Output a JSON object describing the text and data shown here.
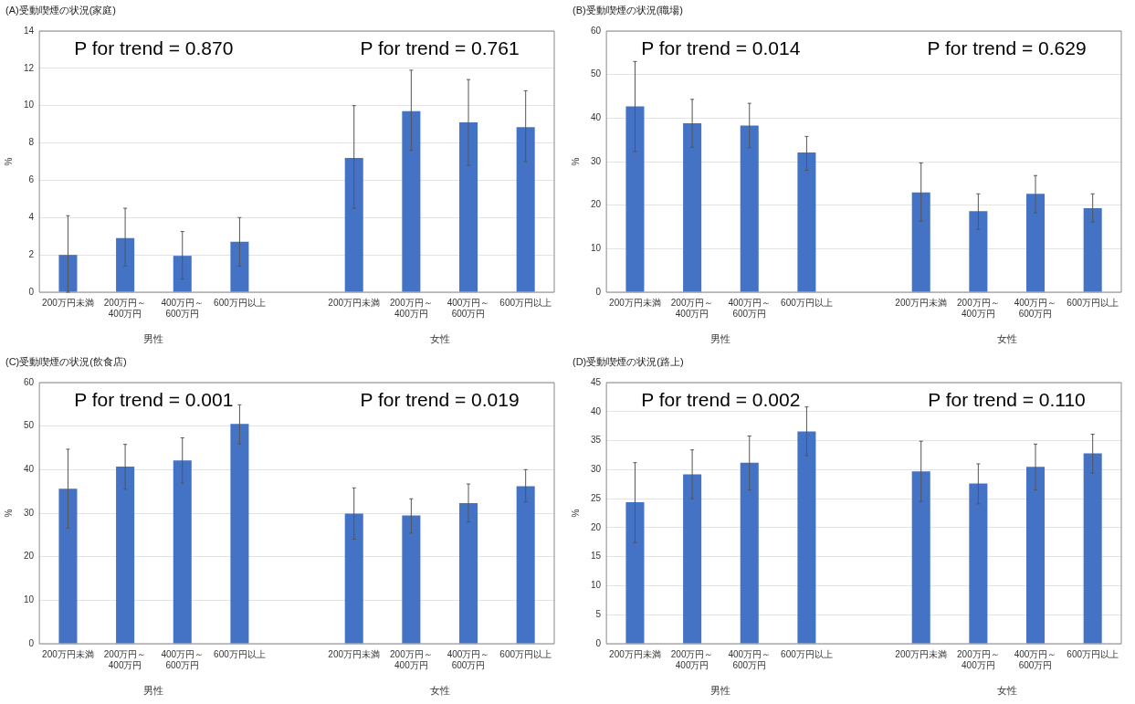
{
  "chart_data": [
    {
      "type": "bar",
      "title": "(A)受動喫煙の状況(家庭)",
      "ylabel": "%",
      "categories": [
        "200万円未満",
        "200万円～400万円",
        "400万円～600万円",
        "600万円以上",
        null,
        "200万円未満",
        "200万円～400万円",
        "400万円～600万円",
        "600万円以上"
      ],
      "values": [
        2.0,
        2.9,
        1.95,
        2.7,
        null,
        7.2,
        9.7,
        9.1,
        8.85
      ],
      "errors": [
        [
          0,
          4.1
        ],
        [
          1.4,
          4.5
        ],
        [
          0.7,
          3.25
        ],
        [
          1.4,
          4.0
        ],
        null,
        [
          4.5,
          10.0
        ],
        [
          7.6,
          11.9
        ],
        [
          6.8,
          11.4
        ],
        [
          7.0,
          10.8
        ]
      ],
      "color": "#4472c4",
      "ylim": [
        0,
        14
      ],
      "yticks": [
        0,
        2,
        4,
        6,
        8,
        10,
        12,
        14
      ],
      "grid": "y",
      "annotations": [
        "P for trend = 0.870",
        "P for trend = 0.761",
        "男性",
        "女性"
      ]
    },
    {
      "type": "bar",
      "title": "(B)受動喫煙の状況(職場)",
      "ylabel": "%",
      "categories": [
        "200万円未満",
        "200万円～400万円",
        "400万円～600万円",
        "600万円以上",
        null,
        "200万円未満",
        "200万円～400万円",
        "400万円～600万円",
        "600万円以上"
      ],
      "values": [
        42.7,
        38.8,
        38.3,
        32.1,
        null,
        22.9,
        18.6,
        22.6,
        19.3
      ],
      "errors": [
        [
          32.3,
          53.0
        ],
        [
          33.3,
          44.3
        ],
        [
          33.2,
          43.4
        ],
        [
          28.0,
          35.8
        ],
        null,
        [
          16.3,
          29.7
        ],
        [
          14.4,
          22.6
        ],
        [
          18.2,
          26.8
        ],
        [
          16.1,
          22.6
        ]
      ],
      "color": "#4472c4",
      "ylim": [
        0,
        60
      ],
      "yticks": [
        0,
        10,
        20,
        30,
        40,
        50,
        60
      ],
      "grid": "y",
      "annotations": [
        "P for trend = 0.014",
        "P for trend = 0.629",
        "男性",
        "女性"
      ]
    },
    {
      "type": "bar",
      "title": "(C)受動喫煙の状況(飲食店)",
      "ylabel": "%",
      "categories": [
        "200万円未満",
        "200万円～400万円",
        "400万円～600万円",
        "600万円以上",
        null,
        "200万円未満",
        "200万円～400万円",
        "400万円～600万円",
        "600万円以上"
      ],
      "values": [
        35.6,
        40.7,
        42.1,
        50.5,
        null,
        29.9,
        29.5,
        32.3,
        36.2
      ],
      "errors": [
        [
          26.6,
          44.7
        ],
        [
          35.5,
          45.8
        ],
        [
          36.9,
          47.3
        ],
        [
          45.9,
          54.9
        ],
        null,
        [
          24.0,
          35.8
        ],
        [
          25.4,
          33.3
        ],
        [
          28.0,
          36.7
        ],
        [
          32.6,
          40.0
        ]
      ],
      "color": "#4472c4",
      "ylim": [
        0,
        60
      ],
      "yticks": [
        0,
        10,
        20,
        30,
        40,
        50,
        60
      ],
      "grid": "y",
      "annotations": [
        "P for trend = 0.001",
        "P for trend = 0.019",
        "男性",
        "女性"
      ]
    },
    {
      "type": "bar",
      "title": "(D)受動喫煙の状況(路上)",
      "ylabel": "%",
      "categories": [
        "200万円未満",
        "200万円～400万円",
        "400万円～600万円",
        "600万円以上",
        null,
        "200万円未満",
        "200万円～400万円",
        "400万円～600万円",
        "600万円以上"
      ],
      "values": [
        24.4,
        29.2,
        31.2,
        36.6,
        null,
        29.7,
        27.6,
        30.5,
        32.8
      ],
      "errors": [
        [
          17.4,
          31.2
        ],
        [
          25.0,
          33.4
        ],
        [
          26.5,
          35.8
        ],
        [
          32.4,
          40.8
        ],
        null,
        [
          24.5,
          34.9
        ],
        [
          24.1,
          31.0
        ],
        [
          26.5,
          34.4
        ],
        [
          29.4,
          36.1
        ]
      ],
      "color": "#4472c4",
      "ylim": [
        0,
        45
      ],
      "yticks": [
        0,
        5,
        10,
        15,
        20,
        25,
        30,
        35,
        40,
        45
      ],
      "grid": "y",
      "annotations": [
        "P for trend = 0.002",
        "P for trend = 0.110",
        "男性",
        "女性"
      ]
    }
  ]
}
